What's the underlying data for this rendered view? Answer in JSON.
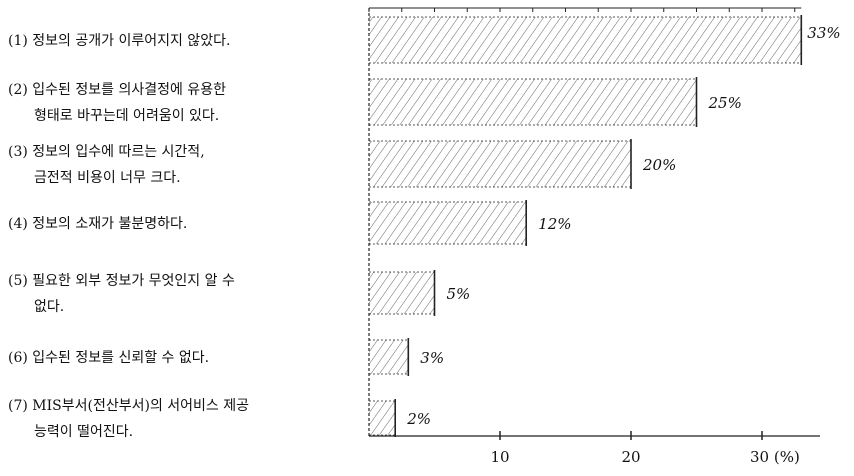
{
  "chart_data": {
    "type": "bar",
    "orientation": "horizontal",
    "categories": [
      [
        "(1) 정보의 공개가 이루어지지 않았다."
      ],
      [
        "(2) 입수된 정보를 의사결정에 유용한",
        "형태로 바꾸는데 어려움이 있다."
      ],
      [
        "(3) 정보의 입수에 따르는 시간적,",
        "금전적 비용이 너무 크다."
      ],
      [
        "(4) 정보의 소재가 불분명하다."
      ],
      [
        "(5) 필요한 외부 정보가 무엇인지 알 수",
        "없다."
      ],
      [
        "(6) 입수된 정보를 신뢰할 수 없다."
      ],
      [
        "(7) MIS부서(전산부서)의 서어비스 제공",
        "능력이 떨어진다."
      ]
    ],
    "values": [
      33,
      25,
      20,
      12,
      5,
      3,
      2
    ],
    "value_labels": [
      "33%",
      "25%",
      "20%",
      "12%",
      "5%",
      "3%",
      "2%"
    ],
    "xlim": [
      0,
      35
    ],
    "xticks": [
      10,
      20,
      30
    ],
    "xtick_labels": [
      "10",
      "20",
      "30 (%)"
    ],
    "grid": false,
    "fill_pattern": "diagonal-hatch",
    "colors": {
      "bar_stroke": "#222222",
      "hatch": "#555555",
      "axis": "#222222"
    }
  }
}
